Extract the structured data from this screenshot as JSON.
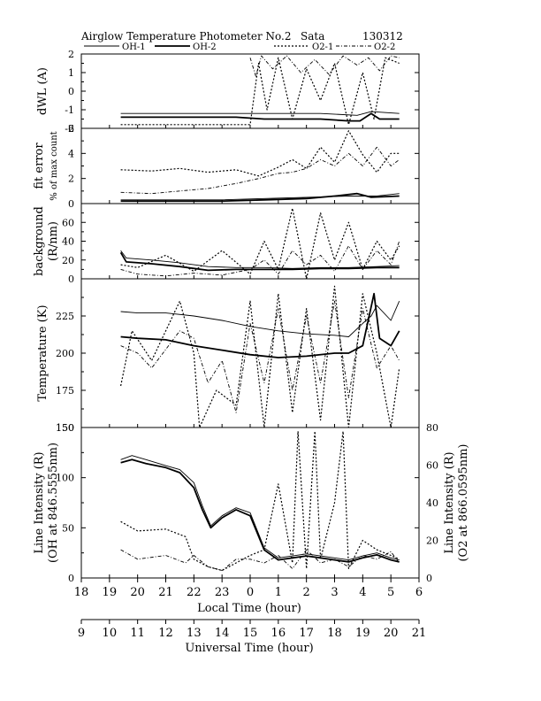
{
  "chart_data": {
    "type": "line",
    "title": "Airglow Temperature Photometer No.2",
    "site": "Sata",
    "date": "130312",
    "legend": [
      "OH-1",
      "OH-2",
      "O2-1",
      "O2-2"
    ],
    "x_axes": {
      "local_time": {
        "label": "Local Time (hour)",
        "ticks": [
          "18",
          "19",
          "20",
          "21",
          "22",
          "23",
          "0",
          "1",
          "2",
          "3",
          "4",
          "5",
          "6"
        ]
      },
      "universal_time": {
        "label": "Universal Time (hour)",
        "ticks": [
          "9",
          "10",
          "11",
          "12",
          "13",
          "14",
          "15",
          "16",
          "17",
          "18",
          "19",
          "20",
          "21"
        ]
      }
    },
    "panels": [
      {
        "ylabel": "dWL (A)",
        "ylim": [
          -2,
          2
        ],
        "yticks": [
          "2",
          "1",
          "0",
          "-1",
          "-2"
        ],
        "series": [
          {
            "name": "OH-1",
            "style": "thin-solid",
            "x": [
              19.4,
              20.5,
              22.0,
              23.5,
              1.0,
              2.5,
              3.8,
              4.3,
              5.3
            ],
            "y": [
              -1.2,
              -1.2,
              -1.2,
              -1.2,
              -1.2,
              -1.2,
              -1.3,
              -1.1,
              -1.2
            ]
          },
          {
            "name": "OH-2",
            "style": "thick-solid",
            "x": [
              19.4,
              20.5,
              22.0,
              23.5,
              0.5,
              1.5,
              2.5,
              3.5,
              3.9,
              4.3,
              4.6,
              5.3
            ],
            "y": [
              -1.4,
              -1.4,
              -1.4,
              -1.4,
              -1.5,
              -1.5,
              -1.5,
              -1.6,
              -1.6,
              -1.2,
              -1.5,
              -1.5
            ]
          },
          {
            "name": "O2-1",
            "style": "dotted",
            "x": [
              19.4,
              20.5,
              22.0,
              23.5,
              0.0,
              0.3,
              0.6,
              1.0,
              1.5,
              2.0,
              2.5,
              3.0,
              3.5,
              4.0,
              4.4,
              4.8,
              5.3
            ],
            "y": [
              -1.8,
              -1.8,
              -1.8,
              -1.8,
              -1.8,
              1.5,
              -1.0,
              1.8,
              -1.5,
              1.2,
              -0.5,
              1.5,
              -1.8,
              1.0,
              -1.5,
              1.8,
              1.5
            ]
          },
          {
            "name": "O2-2",
            "style": "dash-dot",
            "x": [
              0.0,
              0.2,
              0.4,
              0.8,
              1.3,
              1.8,
              2.3,
              2.8,
              3.3,
              3.8,
              4.2,
              4.6,
              5.0,
              5.3
            ],
            "y": [
              1.8,
              0.8,
              1.9,
              1.2,
              1.9,
              1.0,
              1.7,
              0.9,
              1.9,
              1.4,
              1.8,
              1.1,
              1.9,
              1.8
            ]
          }
        ]
      },
      {
        "ylabel": "fit error",
        "ylabel2": "% of max count",
        "ylim": [
          0,
          6
        ],
        "yticks": [
          "6",
          "4",
          "2",
          "0"
        ],
        "series": [
          {
            "name": "OH-1",
            "style": "thin-solid",
            "x": [
              19.4,
              21.0,
              23.0,
              0.5,
              2.0,
              3.5,
              4.5,
              5.3
            ],
            "y": [
              0.3,
              0.3,
              0.3,
              0.4,
              0.5,
              0.6,
              0.6,
              0.8
            ]
          },
          {
            "name": "OH-2",
            "style": "thick-solid",
            "x": [
              19.4,
              21.0,
              23.0,
              0.5,
              2.0,
              3.0,
              3.8,
              4.3,
              5.3
            ],
            "y": [
              0.2,
              0.2,
              0.2,
              0.3,
              0.4,
              0.6,
              0.8,
              0.5,
              0.6
            ]
          },
          {
            "name": "O2-1",
            "style": "dotted",
            "x": [
              19.4,
              20.5,
              21.5,
              22.5,
              23.5,
              0.3,
              1.0,
              1.5,
              2.0,
              2.5,
              3.0,
              3.5,
              4.0,
              4.5,
              5.0,
              5.3
            ],
            "y": [
              2.7,
              2.6,
              2.8,
              2.5,
              2.7,
              2.2,
              2.9,
              3.5,
              2.8,
              4.5,
              3.3,
              5.8,
              3.9,
              2.5,
              4.0,
              4.0
            ]
          },
          {
            "name": "O2-2",
            "style": "dash-dot",
            "x": [
              19.4,
              20.5,
              21.5,
              22.5,
              23.5,
              0.3,
              1.0,
              1.5,
              2.0,
              2.5,
              3.0,
              3.5,
              4.0,
              4.5,
              5.0,
              5.3
            ],
            "y": [
              0.9,
              0.8,
              1.0,
              1.2,
              1.6,
              2.0,
              2.4,
              2.5,
              2.8,
              3.5,
              3.0,
              4.0,
              3.0,
              4.5,
              3.0,
              3.5
            ]
          }
        ]
      },
      {
        "ylabel": "background",
        "ylabel2": "(R/nm)",
        "ylim": [
          0,
          80
        ],
        "yticks": [
          "60",
          "40",
          "20",
          "0"
        ],
        "series": [
          {
            "name": "OH-1",
            "style": "thin-solid",
            "x": [
              19.4,
              19.6,
              20.5,
              21.5,
              22.5,
              23.5,
              0.5,
              1.5,
              2.5,
              3.5,
              4.5,
              5.3
            ],
            "y": [
              30,
              22,
              20,
              17,
              13,
              12,
              12,
              11,
              12,
              12,
              13,
              14
            ]
          },
          {
            "name": "OH-2",
            "style": "thick-solid",
            "x": [
              19.4,
              19.6,
              20.5,
              21.5,
              22.5,
              23.5,
              0.5,
              1.5,
              2.5,
              3.5,
              4.5,
              5.3
            ],
            "y": [
              28,
              18,
              16,
              13,
              9,
              10,
              10,
              10,
              11,
              11,
              12,
              12
            ]
          },
          {
            "name": "O2-1",
            "style": "dotted",
            "x": [
              19.4,
              20.0,
              21.0,
              22.0,
              23.0,
              0.0,
              0.5,
              1.0,
              1.5,
              2.0,
              2.5,
              3.0,
              3.5,
              4.0,
              4.5,
              5.0,
              5.3
            ],
            "y": [
              15,
              12,
              25,
              8,
              30,
              5,
              40,
              10,
              75,
              0,
              70,
              20,
              60,
              10,
              40,
              20,
              35
            ]
          },
          {
            "name": "O2-2",
            "style": "dash-dot",
            "x": [
              19.4,
              20.0,
              21.0,
              22.0,
              23.0,
              0.0,
              0.5,
              1.0,
              1.5,
              2.0,
              2.5,
              3.0,
              3.5,
              4.0,
              4.5,
              5.0,
              5.3
            ],
            "y": [
              10,
              5,
              3,
              6,
              4,
              10,
              20,
              5,
              30,
              15,
              25,
              8,
              35,
              10,
              30,
              15,
              40
            ]
          }
        ]
      },
      {
        "ylabel": "Temperature (K)",
        "ylim": [
          150,
          250
        ],
        "yticks": [
          "225",
          "200",
          "175",
          "150"
        ],
        "series": [
          {
            "name": "OH-1",
            "style": "thin-solid",
            "x": [
              19.4,
              20.0,
              21.0,
              22.0,
              23.0,
              0.0,
              1.0,
              2.0,
              3.0,
              3.5,
              4.0,
              4.3,
              4.5,
              5.0,
              5.3
            ],
            "y": [
              228,
              227,
              227,
              225,
              222,
              218,
              215,
              213,
              212,
              211,
              220,
              225,
              232,
              222,
              235
            ]
          },
          {
            "name": "OH-2",
            "style": "thick-solid",
            "x": [
              19.4,
              20.0,
              21.0,
              22.0,
              23.0,
              0.0,
              1.0,
              2.0,
              3.0,
              3.5,
              4.0,
              4.4,
              4.6,
              5.0,
              5.3
            ],
            "y": [
              211,
              210,
              209,
              205,
              202,
              199,
              197,
              198,
              200,
              200,
              205,
              240,
              210,
              205,
              215
            ]
          },
          {
            "name": "O2-1",
            "style": "dotted",
            "x": [
              19.4,
              19.8,
              20.5,
              21.5,
              22.0,
              22.2,
              22.8,
              23.5,
              0.0,
              0.5,
              1.0,
              1.5,
              2.0,
              2.5,
              3.0,
              3.5,
              4.0,
              4.5,
              5.0,
              5.3
            ],
            "y": [
              178,
              215,
              195,
              235,
              200,
              150,
              175,
              165,
              235,
              150,
              240,
              160,
              230,
              155,
              245,
              150,
              240,
              200,
              150,
              190
            ]
          },
          {
            "name": "O2-2",
            "style": "dash-dot",
            "x": [
              19.4,
              20.0,
              20.5,
              21.5,
              22.0,
              22.5,
              23.0,
              23.5,
              0.0,
              0.5,
              1.0,
              1.5,
              2.0,
              2.5,
              3.0,
              3.5,
              4.0,
              4.5,
              5.0,
              5.3
            ],
            "y": [
              205,
              200,
              190,
              215,
              210,
              180,
              195,
              160,
              220,
              180,
              230,
              175,
              225,
              180,
              235,
              170,
              230,
              190,
              205,
              195
            ]
          }
        ]
      },
      {
        "ylabel": "Line Intensity (R)",
        "ylabel2": "(OH at 846.5555nm)",
        "ylim": [
          0,
          150
        ],
        "yticks": [
          "150",
          "100",
          "50",
          "0"
        ],
        "right_ylabel": "Line Intensity (R)",
        "right_ylabel2": "(O2 at 866.0595nm)",
        "right_ylim": [
          0,
          80
        ],
        "right_yticks": [
          "80",
          "60",
          "40",
          "20",
          "0"
        ],
        "series": [
          {
            "name": "OH-1",
            "style": "thin-solid",
            "axis": "left",
            "x": [
              19.4,
              19.8,
              20.3,
              21.0,
              21.5,
              22.0,
              22.3,
              22.6,
              23.0,
              23.5,
              0.0,
              0.5,
              1.0,
              1.5,
              2.0,
              2.5,
              3.0,
              3.5,
              4.0,
              4.5,
              5.0,
              5.3
            ],
            "y": [
              118,
              122,
              118,
              112,
              108,
              95,
              72,
              52,
              62,
              70,
              65,
              30,
              20,
              22,
              24,
              22,
              20,
              18,
              22,
              25,
              20,
              18
            ]
          },
          {
            "name": "OH-2",
            "style": "thick-solid",
            "axis": "left",
            "x": [
              19.4,
              19.8,
              20.3,
              21.0,
              21.5,
              22.0,
              22.3,
              22.6,
              23.0,
              23.5,
              0.0,
              0.5,
              1.0,
              1.5,
              2.0,
              2.5,
              3.0,
              3.5,
              4.0,
              4.5,
              5.0,
              5.3
            ],
            "y": [
              115,
              118,
              114,
              110,
              105,
              90,
              68,
              50,
              60,
              68,
              62,
              28,
              18,
              20,
              22,
              20,
              18,
              16,
              20,
              23,
              18,
              16
            ]
          },
          {
            "name": "O2-1",
            "style": "dotted",
            "axis": "right",
            "x": [
              19.4,
              20.0,
              21.0,
              21.7,
              22.0,
              22.5,
              23.0,
              23.5,
              0.0,
              0.5,
              1.0,
              1.5,
              1.7,
              2.0,
              2.3,
              2.5,
              3.0,
              3.3,
              3.5,
              4.0,
              4.5,
              5.0,
              5.3
            ],
            "y": [
              30,
              25,
              26,
              22,
              10,
              6,
              4,
              8,
              12,
              15,
              50,
              8,
              78,
              5,
              78,
              10,
              40,
              78,
              5,
              20,
              15,
              12,
              10
            ]
          },
          {
            "name": "O2-2",
            "style": "dash-dot",
            "axis": "right",
            "x": [
              19.4,
              20.0,
              21.0,
              21.7,
              22.0,
              22.5,
              23.0,
              23.5,
              0.0,
              0.5,
              1.0,
              1.5,
              2.0,
              2.5,
              3.0,
              3.5,
              4.0,
              4.5,
              5.0,
              5.3
            ],
            "y": [
              15,
              10,
              12,
              8,
              12,
              6,
              4,
              10,
              10,
              8,
              12,
              5,
              15,
              8,
              10,
              6,
              12,
              10,
              14,
              8
            ]
          }
        ]
      }
    ]
  }
}
